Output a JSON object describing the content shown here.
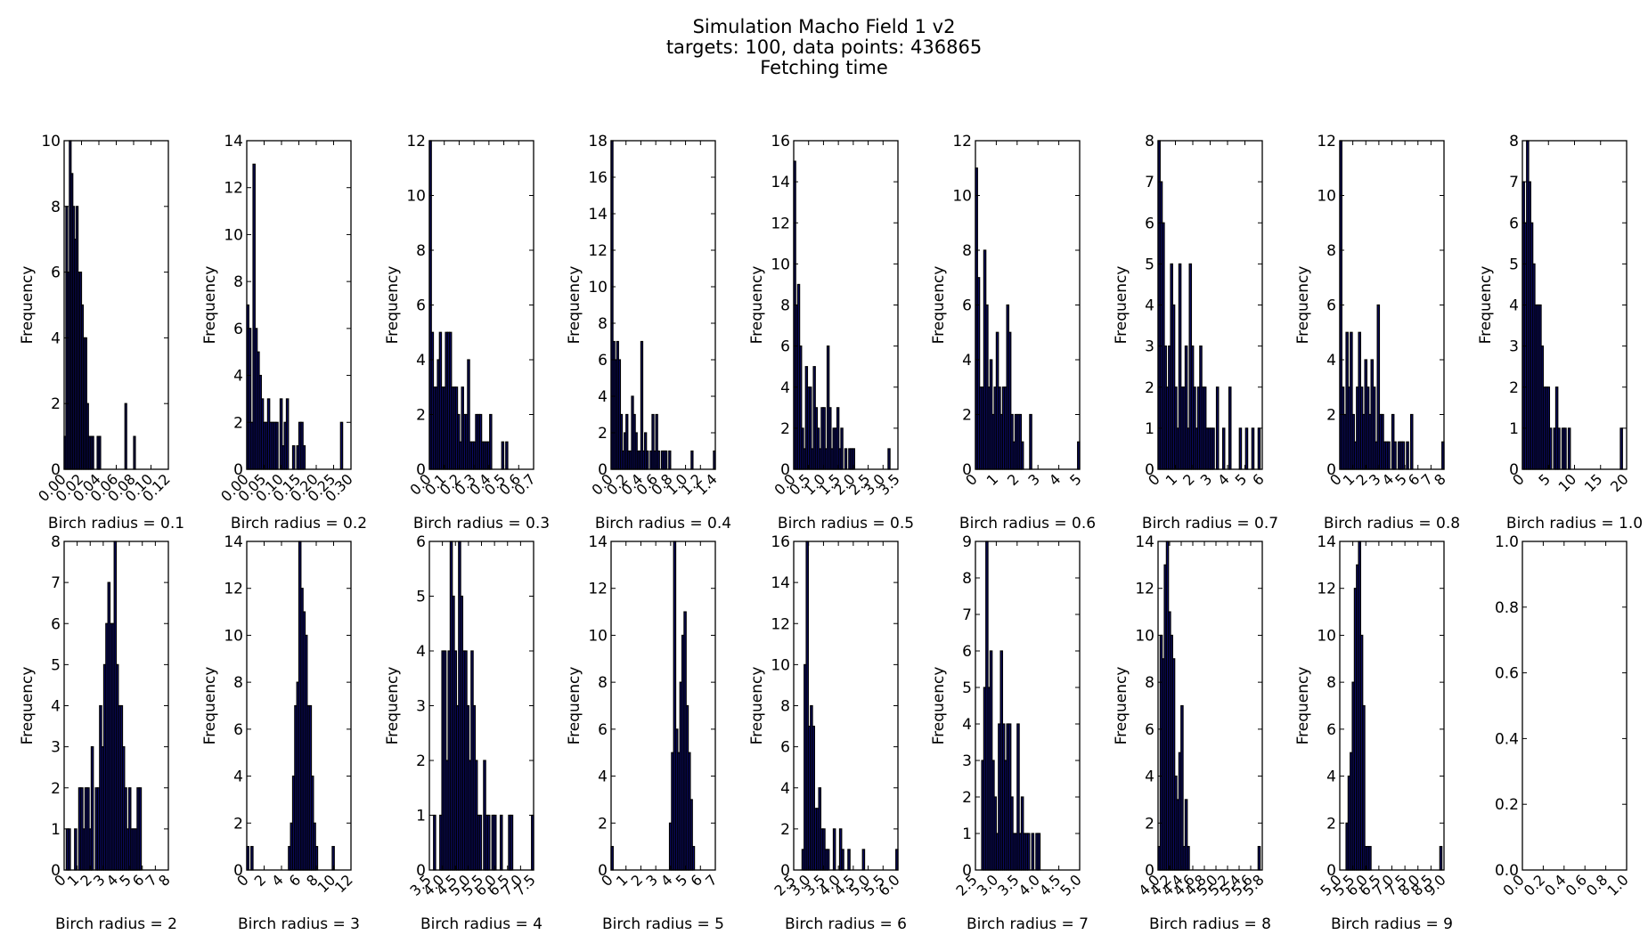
{
  "figure": {
    "title_lines": [
      "Simulation Macho Field 1 v2",
      "targets: 100,   data points: 436865",
      "Fetching time"
    ]
  },
  "chart_data": [
    {
      "type": "bar",
      "xlabel": "Birch radius = 0.1",
      "ylabel": "Frequency",
      "xlim": [
        0,
        0.12
      ],
      "ylim": [
        0,
        10
      ],
      "xticks": [
        "0.00",
        "0.02",
        "0.04",
        "0.06",
        "0.08",
        "0.10",
        "0.12"
      ],
      "yticks": [
        "0",
        "2",
        "4",
        "6",
        "8",
        "10"
      ],
      "bin_start": 0.0,
      "bin_width": 0.002,
      "values": [
        1,
        8,
        6,
        10,
        9,
        8,
        7,
        8,
        6,
        6,
        5,
        4,
        4,
        2,
        1,
        1,
        1,
        0,
        0,
        1,
        1,
        0,
        0,
        0,
        0,
        0,
        0,
        0,
        0,
        0,
        0,
        0,
        0,
        0,
        0,
        2,
        0,
        0,
        0,
        0,
        1
      ]
    },
    {
      "type": "bar",
      "xlabel": "Birch radius = 0.2",
      "ylabel": "Frequency",
      "xlim": [
        0,
        0.3
      ],
      "ylim": [
        0,
        14
      ],
      "xticks": [
        "0.00",
        "0.05",
        "0.10",
        "0.15",
        "0.20",
        "0.25",
        "0.30"
      ],
      "yticks": [
        "0",
        "2",
        "4",
        "6",
        "8",
        "10",
        "12",
        "14"
      ],
      "bin_start": 0.0,
      "bin_width": 0.006,
      "values": [
        7,
        6,
        2,
        13,
        6,
        5,
        4,
        3,
        2,
        2,
        3,
        2,
        2,
        2,
        2,
        0,
        3,
        1,
        2,
        3,
        0,
        0,
        1,
        0,
        1,
        2,
        2,
        1,
        0,
        0,
        0,
        0,
        0,
        0,
        0,
        0,
        0,
        0,
        0,
        0,
        0,
        0,
        0,
        0,
        0,
        2
      ]
    },
    {
      "type": "bar",
      "xlabel": "Birch radius = 0.3",
      "ylabel": "Frequency",
      "xlim": [
        0,
        0.7
      ],
      "ylim": [
        0,
        12
      ],
      "xticks": [
        "0.0",
        "0.1",
        "0.2",
        "0.3",
        "0.4",
        "0.5",
        "0.6",
        "0.7"
      ],
      "yticks": [
        "0",
        "2",
        "4",
        "6",
        "8",
        "10",
        "12"
      ],
      "bin_start": 0.0,
      "bin_width": 0.0135,
      "values": [
        12,
        5,
        3,
        3,
        4,
        5,
        3,
        3,
        5,
        5,
        5,
        3,
        3,
        3,
        2,
        1,
        3,
        2,
        2,
        4,
        1,
        1,
        1,
        2,
        2,
        2,
        1,
        1,
        1,
        1,
        2,
        0,
        0,
        0,
        0,
        0,
        1,
        0,
        1,
        0,
        0,
        0,
        0,
        0,
        0,
        0,
        0,
        0,
        0,
        0,
        0,
        0
      ]
    },
    {
      "type": "bar",
      "xlabel": "Birch radius = 0.4",
      "ylabel": "Frequency",
      "xlim": [
        0,
        1.4
      ],
      "ylim": [
        0,
        18
      ],
      "xticks": [
        "0.0",
        "0.2",
        "0.4",
        "0.6",
        "0.8",
        "1.0",
        "1.2",
        "1.4"
      ],
      "yticks": [
        "0",
        "2",
        "4",
        "6",
        "8",
        "10",
        "12",
        "14",
        "16",
        "18"
      ],
      "bin_start": 0.0,
      "bin_width": 0.025,
      "values": [
        18,
        7,
        6,
        7,
        6,
        3,
        1,
        2,
        3,
        1,
        1,
        4,
        3,
        2,
        1,
        1,
        7,
        1,
        2,
        1,
        0,
        1,
        3,
        1,
        3,
        1,
        0,
        1,
        1,
        1,
        0,
        1,
        0,
        0,
        0,
        0,
        0,
        0,
        0,
        0,
        0,
        0,
        0,
        1,
        0,
        0,
        0,
        0,
        0,
        0,
        0,
        0,
        0,
        0,
        0,
        1
      ]
    },
    {
      "type": "bar",
      "xlabel": "Birch radius = 0.5",
      "ylabel": "Frequency",
      "xlim": [
        0,
        3.5
      ],
      "ylim": [
        0,
        16
      ],
      "xticks": [
        "0.0",
        "0.5",
        "1.0",
        "1.5",
        "2.0",
        "2.5",
        "3.0",
        "3.5"
      ],
      "yticks": [
        "0",
        "2",
        "4",
        "6",
        "8",
        "10",
        "12",
        "14",
        "16"
      ],
      "bin_start": 0.0,
      "bin_width": 0.066,
      "values": [
        15,
        8,
        9,
        6,
        2,
        1,
        5,
        4,
        4,
        1,
        5,
        3,
        2,
        1,
        3,
        3,
        1,
        6,
        3,
        1,
        2,
        2,
        3,
        1,
        2,
        0,
        1,
        0,
        1,
        1,
        1,
        0,
        0,
        0,
        0,
        0,
        0,
        0,
        0,
        0,
        0,
        0,
        0,
        0,
        0,
        0,
        0,
        0,
        1,
        0
      ]
    },
    {
      "type": "bar",
      "xlabel": "Birch radius = 0.6",
      "ylabel": "Frequency",
      "xlim": [
        0,
        5
      ],
      "ylim": [
        0,
        12
      ],
      "xticks": [
        "0",
        "1",
        "2",
        "3",
        "4",
        "5"
      ],
      "yticks": [
        "0",
        "2",
        "4",
        "6",
        "8",
        "10",
        "12"
      ],
      "bin_start": 0.0,
      "bin_width": 0.1,
      "values": [
        11,
        7,
        3,
        3,
        8,
        6,
        3,
        4,
        2,
        3,
        5,
        3,
        2,
        3,
        3,
        6,
        5,
        2,
        1,
        2,
        2,
        2,
        1,
        0,
        0,
        0,
        2,
        0,
        0,
        0,
        0,
        0,
        0,
        0,
        0,
        0,
        0,
        0,
        0,
        0,
        0,
        0,
        0,
        0,
        0,
        0,
        0,
        0,
        0,
        1
      ]
    },
    {
      "type": "bar",
      "xlabel": "Birch radius = 0.7",
      "ylabel": "Frequency",
      "xlim": [
        0,
        6
      ],
      "ylim": [
        0,
        8
      ],
      "xticks": [
        "0",
        "1",
        "2",
        "3",
        "4",
        "5",
        "6"
      ],
      "yticks": [
        "0",
        "1",
        "2",
        "3",
        "4",
        "5",
        "6",
        "7",
        "8"
      ],
      "bin_start": 0.0,
      "bin_width": 0.12,
      "values": [
        8,
        7,
        6,
        3,
        2,
        3,
        5,
        4,
        2,
        1,
        5,
        2,
        2,
        3,
        1,
        5,
        3,
        2,
        1,
        2,
        3,
        2,
        2,
        1,
        1,
        1,
        1,
        0,
        2,
        0,
        0,
        1,
        0,
        0,
        2,
        0,
        0,
        0,
        0,
        1,
        0,
        0,
        1,
        0,
        0,
        1,
        0,
        0,
        1,
        0
      ]
    },
    {
      "type": "bar",
      "xlabel": "Birch radius = 0.8",
      "ylabel": "Frequency",
      "xlim": [
        0,
        8
      ],
      "ylim": [
        0,
        12
      ],
      "xticks": [
        "0",
        "1",
        "2",
        "3",
        "4",
        "5",
        "6",
        "7",
        "8"
      ],
      "yticks": [
        "0",
        "2",
        "4",
        "6",
        "8",
        "10",
        "12"
      ],
      "bin_start": 0.0,
      "bin_width": 0.16,
      "values": [
        12,
        3,
        2,
        5,
        3,
        5,
        2,
        1,
        3,
        5,
        3,
        2,
        4,
        3,
        2,
        4,
        3,
        1,
        6,
        2,
        2,
        1,
        1,
        1,
        0,
        2,
        1,
        0,
        1,
        1,
        1,
        0,
        1,
        0,
        2,
        0,
        0,
        0,
        0,
        0,
        0,
        0,
        0,
        0,
        0,
        0,
        0,
        0,
        0,
        1
      ]
    },
    {
      "type": "bar",
      "xlabel": "Birch radius = 1.0",
      "ylabel": "Frequency",
      "xlim": [
        0,
        20
      ],
      "ylim": [
        0,
        8
      ],
      "xticks": [
        "0",
        "5",
        "10",
        "15",
        "20"
      ],
      "yticks": [
        "0",
        "1",
        "2",
        "3",
        "4",
        "5",
        "6",
        "7",
        "8"
      ],
      "bin_start": 0.0,
      "bin_width": 0.4,
      "values": [
        7,
        6,
        8,
        7,
        6,
        5,
        4,
        4,
        4,
        3,
        2,
        2,
        2,
        1,
        0,
        1,
        2,
        1,
        0,
        1,
        1,
        0,
        1,
        0,
        0,
        0,
        0,
        0,
        0,
        0,
        0,
        0,
        0,
        0,
        0,
        0,
        0,
        0,
        0,
        0,
        0,
        0,
        0,
        0,
        0,
        0,
        0,
        1,
        0,
        0
      ]
    },
    {
      "type": "bar",
      "xlabel": "Birch radius = 2",
      "ylabel": "Frequency",
      "xlim": [
        0,
        8
      ],
      "ylim": [
        0,
        8
      ],
      "xticks": [
        "0",
        "1",
        "2",
        "3",
        "4",
        "5",
        "6",
        "7",
        "8"
      ],
      "yticks": [
        "0",
        "1",
        "2",
        "3",
        "4",
        "5",
        "6",
        "7",
        "8"
      ],
      "bin_start": 0.0,
      "bin_width": 0.16,
      "values": [
        0,
        1,
        1,
        0,
        0,
        1,
        0,
        2,
        2,
        1,
        2,
        2,
        1,
        3,
        0,
        2,
        2,
        4,
        3,
        5,
        6,
        7,
        6,
        6,
        8,
        5,
        4,
        4,
        3,
        2,
        1,
        2,
        1,
        1,
        1,
        2,
        2,
        0
      ]
    },
    {
      "type": "bar",
      "xlabel": "Birch radius = 3",
      "ylabel": "Frequency",
      "xlim": [
        0,
        12
      ],
      "ylim": [
        0,
        14
      ],
      "xticks": [
        "0",
        "2",
        "4",
        "6",
        "8",
        "10",
        "12"
      ],
      "yticks": [
        "0",
        "2",
        "4",
        "6",
        "8",
        "10",
        "12",
        "14"
      ],
      "bin_start": 0.0,
      "bin_width": 0.24,
      "values": [
        1,
        0,
        1,
        0,
        0,
        0,
        0,
        0,
        0,
        0,
        0,
        0,
        0,
        0,
        0,
        0,
        0,
        0,
        0,
        0,
        1,
        2,
        4,
        7,
        8,
        14,
        12,
        11,
        10,
        7,
        7,
        4,
        2,
        1,
        0,
        0,
        0,
        0,
        0,
        0,
        0,
        1,
        0
      ]
    },
    {
      "type": "bar",
      "xlabel": "Birch radius = 4",
      "ylabel": "Frequency",
      "xlim": [
        3.5,
        7.5
      ],
      "ylim": [
        0,
        6
      ],
      "xticks": [
        "3.5",
        "4.0",
        "4.5",
        "5.0",
        "5.5",
        "6.0",
        "6.5",
        "7.0",
        "7.5"
      ],
      "yticks": [
        "0",
        "1",
        "2",
        "3",
        "4",
        "5",
        "6"
      ],
      "bin_start": 3.5,
      "bin_width": 0.08,
      "values": [
        0,
        0,
        1,
        0,
        0,
        1,
        4,
        4,
        2,
        4,
        6,
        5,
        4,
        3,
        6,
        5,
        4,
        4,
        3,
        2,
        4,
        3,
        2,
        1,
        1,
        0,
        2,
        1,
        1,
        0,
        1,
        1,
        0,
        0,
        1,
        0,
        0,
        0,
        1,
        1,
        0,
        0,
        0,
        0,
        0,
        0,
        0,
        0,
        0,
        1
      ]
    },
    {
      "type": "bar",
      "xlabel": "Birch radius = 5",
      "ylabel": "Frequency",
      "xlim": [
        0,
        7
      ],
      "ylim": [
        0,
        14
      ],
      "xticks": [
        "0",
        "1",
        "2",
        "3",
        "4",
        "5",
        "6",
        "7"
      ],
      "yticks": [
        "0",
        "2",
        "4",
        "6",
        "8",
        "10",
        "12",
        "14"
      ],
      "bin_start": 0.0,
      "bin_width": 0.14,
      "values": [
        1,
        0,
        0,
        0,
        0,
        0,
        0,
        0,
        0,
        0,
        0,
        0,
        0,
        0,
        0,
        0,
        0,
        0,
        0,
        0,
        0,
        0,
        0,
        0,
        0,
        0,
        0,
        0,
        2,
        5,
        14,
        6,
        5,
        8,
        10,
        11,
        7,
        5,
        3,
        1,
        0,
        0,
        0,
        0,
        0,
        0,
        0,
        0,
        0,
        0
      ]
    },
    {
      "type": "bar",
      "xlabel": "Birch radius = 6",
      "ylabel": "Frequency",
      "xlim": [
        2.5,
        6.0
      ],
      "ylim": [
        0,
        16
      ],
      "xticks": [
        "2.5",
        "3.0",
        "3.5",
        "4.0",
        "4.5",
        "5.0",
        "5.5",
        "6.0"
      ],
      "yticks": [
        "0",
        "2",
        "4",
        "6",
        "8",
        "10",
        "12",
        "14",
        "16"
      ],
      "bin_start": 2.5,
      "bin_width": 0.07,
      "values": [
        0,
        0,
        0,
        0,
        1,
        10,
        16,
        7,
        8,
        7,
        3,
        3,
        4,
        2,
        2,
        1,
        1,
        0,
        0,
        2,
        0,
        0,
        2,
        1,
        0,
        0,
        1,
        0,
        0,
        0,
        0,
        0,
        0,
        1,
        0,
        0,
        0,
        0,
        0,
        0,
        0,
        0,
        0,
        0,
        0,
        0,
        0,
        0,
        0,
        1
      ]
    },
    {
      "type": "bar",
      "xlabel": "Birch radius = 7",
      "ylabel": "Frequency",
      "xlim": [
        2.5,
        5.0
      ],
      "ylim": [
        0,
        9
      ],
      "xticks": [
        "2.5",
        "3.0",
        "3.5",
        "4.0",
        "4.5",
        "5.0"
      ],
      "yticks": [
        "0",
        "1",
        "2",
        "3",
        "4",
        "5",
        "6",
        "7",
        "8",
        "9"
      ],
      "bin_start": 2.5,
      "bin_width": 0.05,
      "values": [
        0,
        0,
        0,
        3,
        5,
        9,
        5,
        6,
        3,
        2,
        1,
        4,
        6,
        4,
        3,
        4,
        4,
        2,
        1,
        1,
        4,
        1,
        2,
        1,
        1,
        1,
        0,
        1,
        0,
        1,
        1,
        0,
        0,
        0,
        0,
        0,
        0,
        0,
        0,
        0,
        0,
        0,
        0,
        0,
        0,
        0,
        0,
        0,
        0,
        0
      ]
    },
    {
      "type": "bar",
      "xlabel": "Birch radius = 8",
      "ylabel": "Frequency",
      "xlim": [
        4.0,
        5.8
      ],
      "ylim": [
        0,
        14
      ],
      "xticks": [
        "4.0",
        "4.2",
        "4.4",
        "4.6",
        "4.8",
        "5.0",
        "5.2",
        "5.4",
        "5.6",
        "5.8"
      ],
      "yticks": [
        "0",
        "2",
        "4",
        "6",
        "8",
        "10",
        "12",
        "14"
      ],
      "bin_start": 4.0,
      "bin_width": 0.036,
      "values": [
        1,
        10,
        9,
        13,
        14,
        11,
        10,
        9,
        4,
        3,
        5,
        7,
        1,
        3,
        1,
        0,
        0,
        0,
        0,
        0,
        0,
        0,
        0,
        0,
        0,
        0,
        0,
        0,
        0,
        0,
        0,
        0,
        0,
        0,
        0,
        0,
        0,
        0,
        0,
        0,
        0,
        0,
        0,
        0,
        0,
        0,
        0,
        0,
        1
      ]
    },
    {
      "type": "bar",
      "xlabel": "Birch radius = 9",
      "ylabel": "Frequency",
      "xlim": [
        5.0,
        9.0
      ],
      "ylim": [
        0,
        14
      ],
      "xticks": [
        "5.0",
        "5.5",
        "6.0",
        "6.5",
        "7.0",
        "7.5",
        "8.0",
        "8.5",
        "9.0"
      ],
      "yticks": [
        "0",
        "2",
        "4",
        "6",
        "8",
        "10",
        "12",
        "14"
      ],
      "bin_start": 5.0,
      "bin_width": 0.08,
      "values": [
        0,
        0,
        0,
        2,
        4,
        5,
        8,
        12,
        13,
        14,
        10,
        7,
        1,
        1,
        1,
        0,
        0,
        0,
        0,
        0,
        0,
        0,
        0,
        0,
        0,
        0,
        0,
        0,
        0,
        0,
        0,
        0,
        0,
        0,
        0,
        0,
        0,
        0,
        0,
        0,
        0,
        0,
        0,
        0,
        0,
        0,
        0,
        0,
        1
      ]
    },
    {
      "type": "bar",
      "xlabel": "",
      "ylabel": "",
      "xlim": [
        0,
        1
      ],
      "ylim": [
        0,
        1
      ],
      "xticks": [
        "0.0",
        "0.2",
        "0.4",
        "0.6",
        "0.8",
        "1.0"
      ],
      "yticks": [
        "0.0",
        "0.2",
        "0.4",
        "0.6",
        "0.8",
        "1.0"
      ],
      "values": []
    }
  ]
}
